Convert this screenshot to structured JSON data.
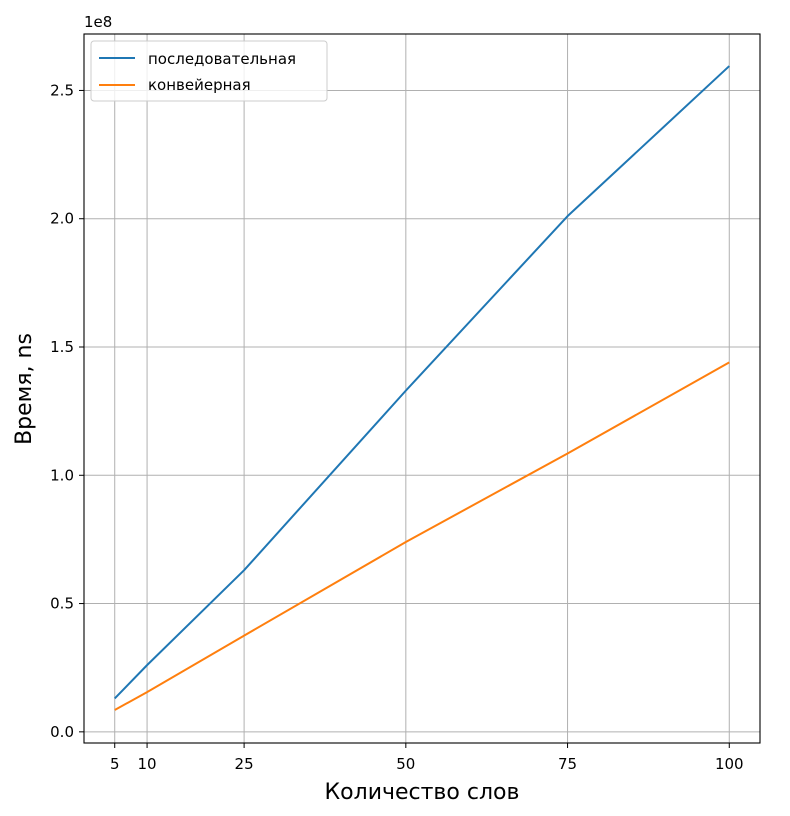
{
  "chart_data": {
    "type": "line",
    "xlabel": "Количество слов",
    "ylabel": "Время, ns",
    "y_offset_label": "1e8",
    "x_ticks": [
      5,
      10,
      25,
      50,
      75,
      100
    ],
    "x_tick_labels": [
      "5",
      "10",
      "25",
      "50",
      "75",
      "100"
    ],
    "y_ticks": [
      0,
      0.5,
      1.0,
      1.5,
      2.0,
      2.5
    ],
    "y_tick_labels": [
      "0.0",
      "0.5",
      "1.0",
      "1.5",
      "2.0",
      "2.5"
    ],
    "xlim": [
      0.25,
      104.75
    ],
    "ylim": [
      -0.0435,
      2.72
    ],
    "y_unit_scale": 100000000,
    "grid": true,
    "legend_position": "upper left",
    "x": [
      5,
      10,
      25,
      50,
      75,
      100
    ],
    "series": [
      {
        "name": "последовательная",
        "color": "#1f77b4",
        "values": [
          0.13,
          0.26,
          0.63,
          1.33,
          2.01,
          2.595
        ]
      },
      {
        "name": "конвейерная",
        "color": "#ff7f0e",
        "values": [
          0.085,
          0.155,
          0.375,
          0.74,
          1.085,
          1.44
        ]
      }
    ]
  }
}
